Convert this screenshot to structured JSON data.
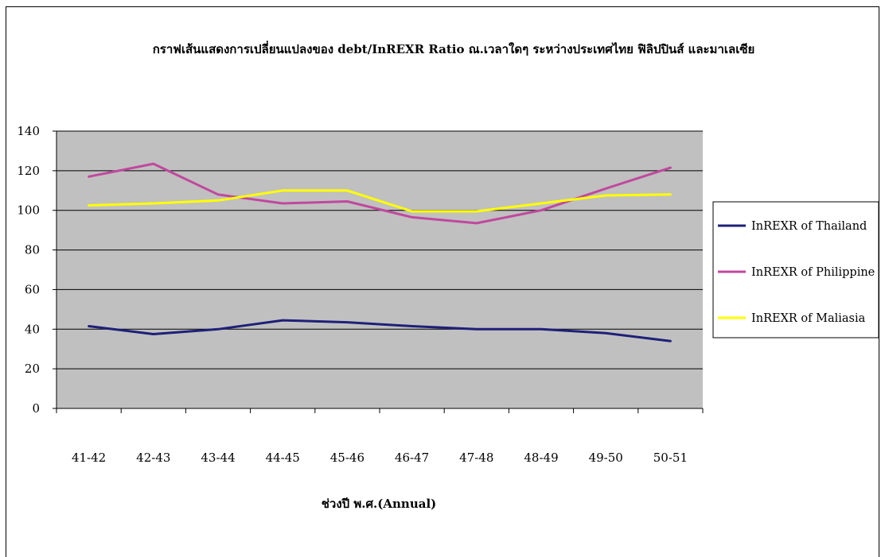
{
  "chart_data": {
    "type": "line",
    "title": "กราฟเส้นแสดงการเปลี่ยนแปลงของ debt/InREXR Ratio ณ.เวลาใดๆ ระหว่างประเทศไทย ฟิลิปปินส์ และมาเลเซีย",
    "xlabel": "ช่วงปี พ.ศ.(Annual)",
    "ylabel": "",
    "categories": [
      "41-42",
      "42-43",
      "43-44",
      "44-45",
      "45-46",
      "46-47",
      "47-48",
      "48-49",
      "49-50",
      "50-51"
    ],
    "ylim": [
      0,
      140
    ],
    "yticks": [
      "0",
      "20",
      "40",
      "60",
      "80",
      "100",
      "120",
      "140"
    ],
    "grid": true,
    "legend_position": "right",
    "plot_background": "#c0c0c0",
    "series": [
      {
        "name": "InREXR of Thailand",
        "color": "#1f1f7a",
        "values": [
          41.5,
          37.5,
          40,
          44.5,
          43.5,
          41.5,
          40,
          40,
          38,
          34
        ]
      },
      {
        "name": "InREXR of Philippine",
        "color": "#c0489e",
        "values": [
          117,
          123.5,
          108,
          103.5,
          104.5,
          96.5,
          93.5,
          100,
          111,
          121.5
        ]
      },
      {
        "name": "InREXR of Maliasia",
        "color": "#ffff00",
        "values": [
          102.5,
          103.5,
          105,
          110,
          110,
          99.5,
          99.5,
          103.5,
          107.5,
          108
        ]
      }
    ]
  }
}
